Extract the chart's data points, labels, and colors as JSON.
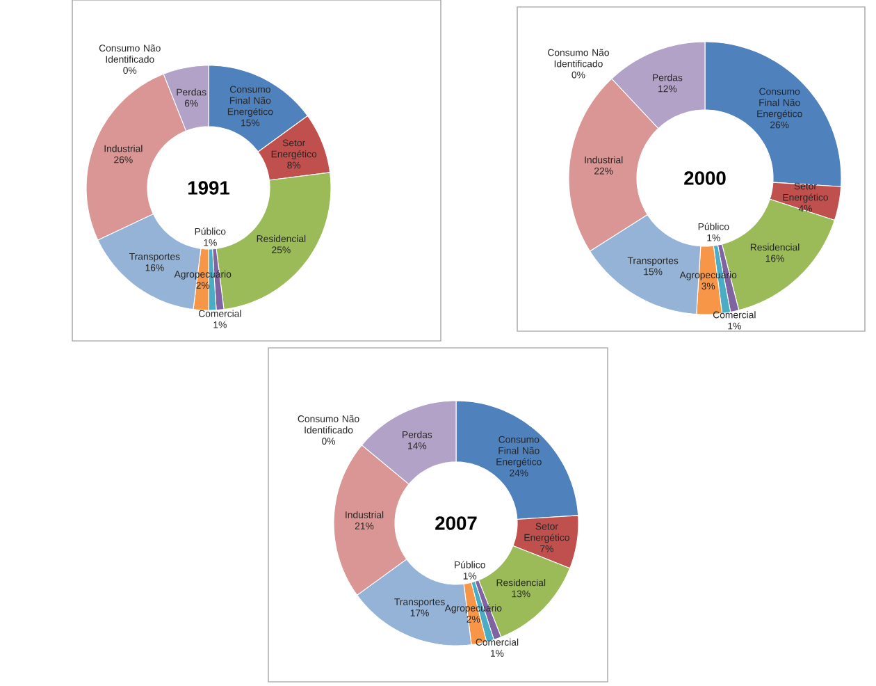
{
  "chart_data": [
    {
      "type": "donut",
      "title": "1991",
      "categories": [
        "Consumo Final Não Energético",
        "Setor Energético",
        "Residencial",
        "Comercial",
        "Público",
        "Agropecuário",
        "Transportes",
        "Industrial",
        "Consumo Não Identificado",
        "Perdas"
      ],
      "values": [
        15,
        8,
        25,
        1,
        1,
        2,
        16,
        26,
        0,
        6
      ],
      "value_labels": [
        "15%",
        "8%",
        "25%",
        "1%",
        "1%",
        "2%",
        "16%",
        "26%",
        "0%",
        "6%"
      ],
      "colors": [
        "#4f81bd",
        "#c0504d",
        "#9bbb59",
        "#8064a2",
        "#4bacc6",
        "#f79646",
        "#95b3d7",
        "#d99694",
        "#c3d69b",
        "#b3a2c7"
      ]
    },
    {
      "type": "donut",
      "title": "2000",
      "categories": [
        "Consumo Final Não Energético",
        "Setor Energético",
        "Residencial",
        "Comercial",
        "Público",
        "Agropecuário",
        "Transportes",
        "Industrial",
        "Consumo Não Identificado",
        "Perdas"
      ],
      "values": [
        26,
        4,
        16,
        1,
        1,
        3,
        15,
        22,
        0,
        12
      ],
      "value_labels": [
        "26%",
        "4%",
        "16%",
        "1%",
        "1%",
        "3%",
        "15%",
        "22%",
        "0%",
        "12%"
      ],
      "colors": [
        "#4f81bd",
        "#c0504d",
        "#9bbb59",
        "#8064a2",
        "#4bacc6",
        "#f79646",
        "#95b3d7",
        "#d99694",
        "#c3d69b",
        "#b3a2c7"
      ]
    },
    {
      "type": "donut",
      "title": "2007",
      "categories": [
        "Consumo Final Não Energético",
        "Setor Energético",
        "Residencial",
        "Comercial",
        "Público",
        "Agropecuário",
        "Transportes",
        "Industrial",
        "Consumo Não Identificado",
        "Perdas"
      ],
      "values": [
        24,
        7,
        13,
        1,
        1,
        2,
        17,
        21,
        0,
        14
      ],
      "value_labels": [
        "24%",
        "7%",
        "13%",
        "1%",
        "1%",
        "2%",
        "17%",
        "21%",
        "0%",
        "14%"
      ],
      "colors": [
        "#4f81bd",
        "#c0504d",
        "#9bbb59",
        "#8064a2",
        "#4bacc6",
        "#f79646",
        "#95b3d7",
        "#d99694",
        "#c3d69b",
        "#b3a2c7"
      ]
    }
  ]
}
